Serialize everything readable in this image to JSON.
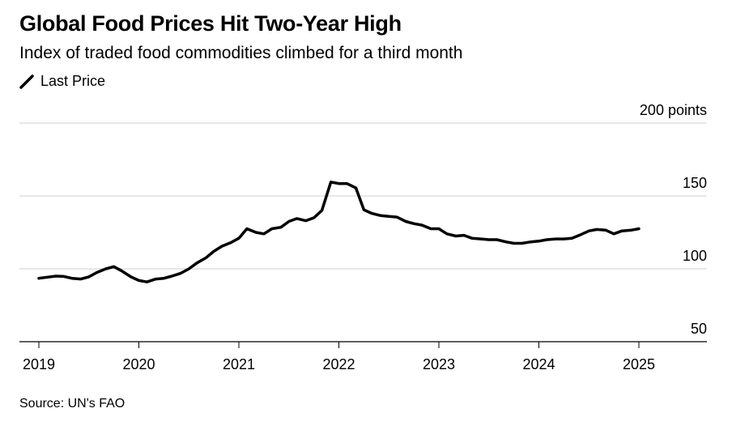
{
  "chart_data": {
    "type": "line",
    "title": "Global Food Prices Hit Two-Year High",
    "subtitle": "Index of traded food commodities climbed for a third month",
    "source": "Source: UN's FAO",
    "y_unit": "points",
    "ylim": [
      50,
      200
    ],
    "y_ticks": [
      {
        "value": 200,
        "label": "200 points"
      },
      {
        "value": 150,
        "label": "150"
      },
      {
        "value": 100,
        "label": "100"
      },
      {
        "value": 50,
        "label": "50"
      }
    ],
    "x_ticks": [
      "2019",
      "2020",
      "2021",
      "2022",
      "2023",
      "2024",
      "2025"
    ],
    "xlim": [
      2019,
      2025.75
    ],
    "grid": true,
    "legend_position": "top-left",
    "series": [
      {
        "name": "Last Price",
        "color": "#000000",
        "points": [
          [
            2019.0,
            93.5
          ],
          [
            2019.17,
            95.0
          ],
          [
            2019.25,
            94.8
          ],
          [
            2019.33,
            93.5
          ],
          [
            2019.42,
            93.0
          ],
          [
            2019.5,
            94.5
          ],
          [
            2019.58,
            97.5
          ],
          [
            2019.67,
            100.0
          ],
          [
            2019.75,
            101.5
          ],
          [
            2019.83,
            98.5
          ],
          [
            2019.92,
            94.5
          ],
          [
            2020.0,
            92.0
          ],
          [
            2020.08,
            91.0
          ],
          [
            2020.17,
            93.0
          ],
          [
            2020.25,
            93.5
          ],
          [
            2020.33,
            95.0
          ],
          [
            2020.42,
            97.0
          ],
          [
            2020.5,
            100.0
          ],
          [
            2020.58,
            104.0
          ],
          [
            2020.67,
            107.5
          ],
          [
            2020.75,
            112.0
          ],
          [
            2020.83,
            115.5
          ],
          [
            2020.92,
            118.0
          ],
          [
            2021.0,
            121.0
          ],
          [
            2021.08,
            127.5
          ],
          [
            2021.17,
            125.0
          ],
          [
            2021.25,
            124.0
          ],
          [
            2021.33,
            127.5
          ],
          [
            2021.42,
            128.5
          ],
          [
            2021.5,
            132.5
          ],
          [
            2021.58,
            134.5
          ],
          [
            2021.67,
            133.0
          ],
          [
            2021.75,
            135.0
          ],
          [
            2021.83,
            140.0
          ],
          [
            2021.92,
            159.5
          ],
          [
            2022.0,
            158.5
          ],
          [
            2022.08,
            158.5
          ],
          [
            2022.17,
            155.5
          ],
          [
            2022.25,
            140.5
          ],
          [
            2022.33,
            138.0
          ],
          [
            2022.42,
            136.5
          ],
          [
            2022.5,
            136.0
          ],
          [
            2022.58,
            135.5
          ],
          [
            2022.67,
            132.5
          ],
          [
            2022.75,
            131.0
          ],
          [
            2022.83,
            130.0
          ],
          [
            2022.92,
            127.5
          ],
          [
            2023.0,
            127.5
          ],
          [
            2023.08,
            124.0
          ],
          [
            2023.17,
            122.5
          ],
          [
            2023.25,
            123.0
          ],
          [
            2023.33,
            121.0
          ],
          [
            2023.42,
            120.5
          ],
          [
            2023.5,
            120.0
          ],
          [
            2023.58,
            120.0
          ],
          [
            2023.67,
            118.5
          ],
          [
            2023.75,
            117.5
          ],
          [
            2023.83,
            117.5
          ],
          [
            2023.92,
            118.5
          ],
          [
            2024.0,
            119.0
          ],
          [
            2024.08,
            120.0
          ],
          [
            2024.17,
            120.5
          ],
          [
            2024.25,
            120.5
          ],
          [
            2024.33,
            121.0
          ],
          [
            2024.42,
            123.5
          ],
          [
            2024.5,
            126.0
          ],
          [
            2024.58,
            127.0
          ],
          [
            2024.67,
            126.5
          ],
          [
            2024.75,
            124.0
          ],
          [
            2024.83,
            126.0
          ],
          [
            2024.92,
            126.5
          ],
          [
            2025.0,
            127.5
          ]
        ]
      }
    ]
  }
}
